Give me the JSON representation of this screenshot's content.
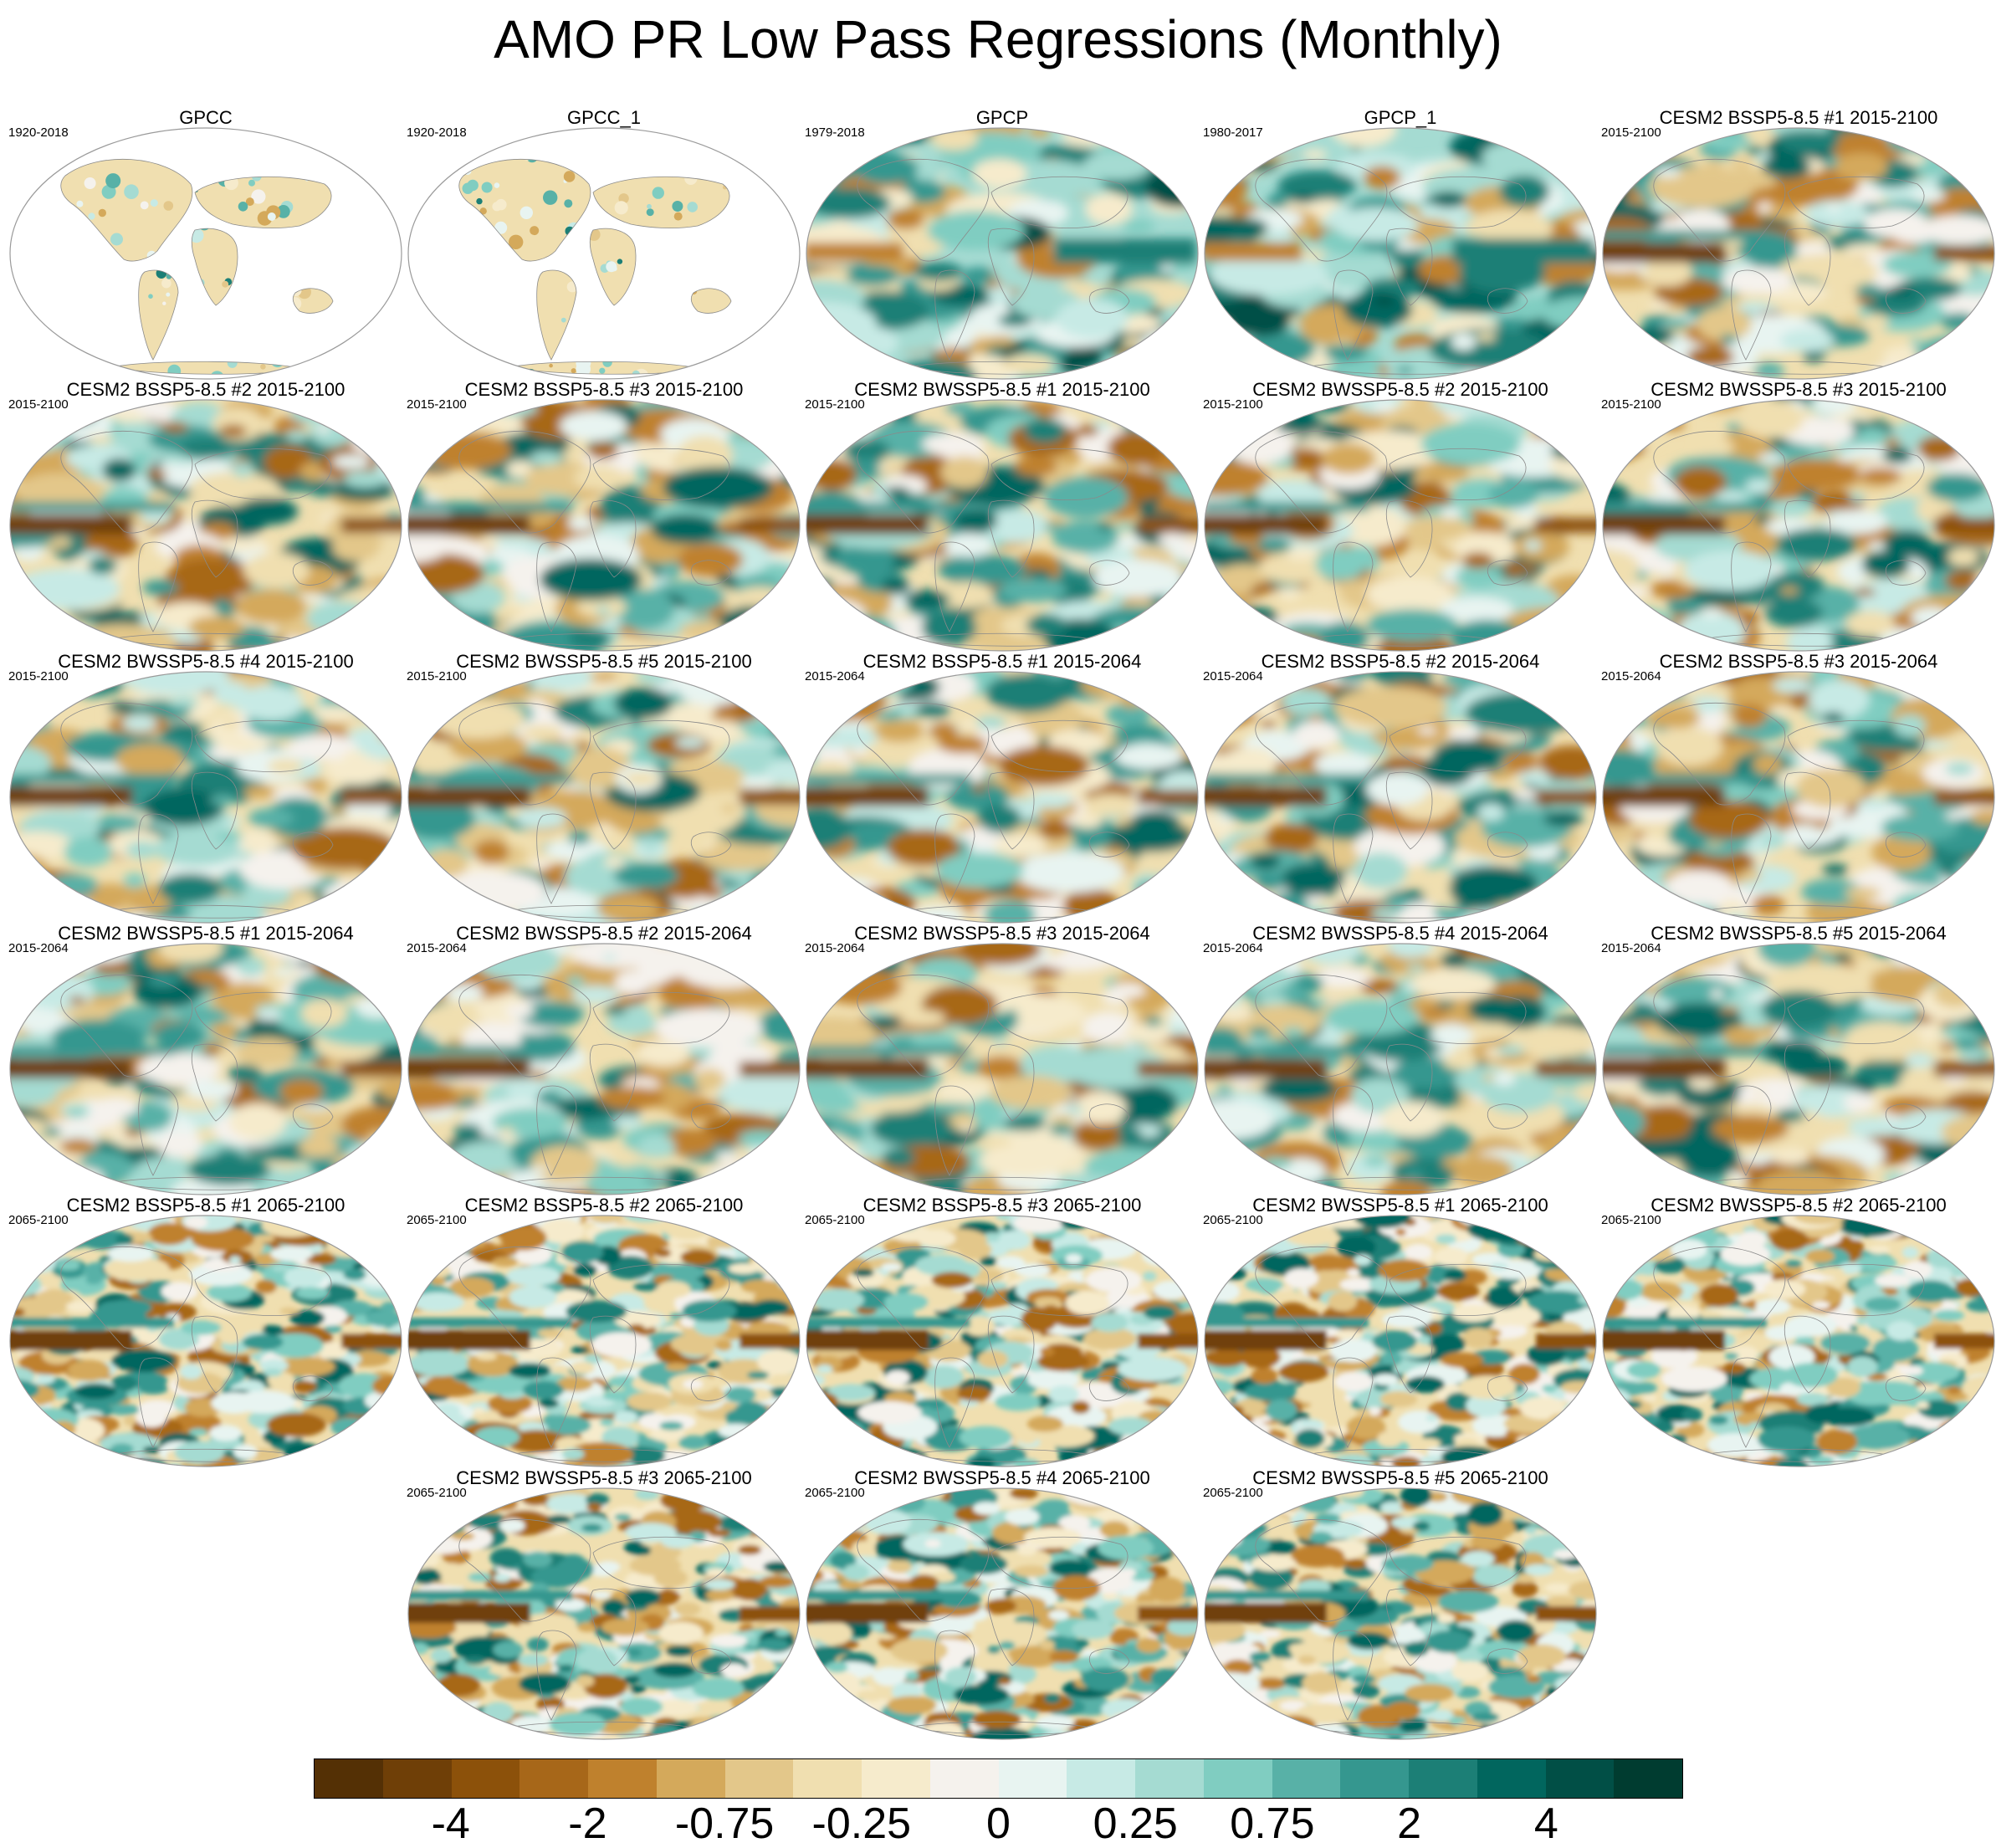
{
  "title": "AMO PR Low Pass Regressions (Monthly)",
  "panels": [
    {
      "title": "GPCC",
      "period": "1920-2018",
      "kind": "land"
    },
    {
      "title": "GPCC_1",
      "period": "1920-2018",
      "kind": "land"
    },
    {
      "title": "GPCP",
      "period": "1979-2018",
      "kind": "obs"
    },
    {
      "title": "GPCP_1",
      "period": "1980-2017",
      "kind": "obs"
    },
    {
      "title": "CESM2 BSSP5-8.5 #1 2015-2100",
      "period": "2015-2100",
      "kind": "model"
    },
    {
      "title": "CESM2 BSSP5-8.5 #2 2015-2100",
      "period": "2015-2100",
      "kind": "model"
    },
    {
      "title": "CESM2 BSSP5-8.5 #3 2015-2100",
      "period": "2015-2100",
      "kind": "model"
    },
    {
      "title": "CESM2 BWSSP5-8.5 #1 2015-2100",
      "period": "2015-2100",
      "kind": "model"
    },
    {
      "title": "CESM2 BWSSP5-8.5 #2 2015-2100",
      "period": "2015-2100",
      "kind": "model"
    },
    {
      "title": "CESM2 BWSSP5-8.5 #3 2015-2100",
      "period": "2015-2100",
      "kind": "model"
    },
    {
      "title": "CESM2 BWSSP5-8.5 #4 2015-2100",
      "period": "2015-2100",
      "kind": "model"
    },
    {
      "title": "CESM2 BWSSP5-8.5 #5 2015-2100",
      "period": "2015-2100",
      "kind": "model"
    },
    {
      "title": "CESM2 BSSP5-8.5 #1 2015-2064",
      "period": "2015-2064",
      "kind": "model"
    },
    {
      "title": "CESM2 BSSP5-8.5 #2 2015-2064",
      "period": "2015-2064",
      "kind": "model"
    },
    {
      "title": "CESM2 BSSP5-8.5 #3 2015-2064",
      "period": "2015-2064",
      "kind": "model"
    },
    {
      "title": "CESM2 BWSSP5-8.5 #1 2015-2064",
      "period": "2015-2064",
      "kind": "model"
    },
    {
      "title": "CESM2 BWSSP5-8.5 #2 2015-2064",
      "period": "2015-2064",
      "kind": "model"
    },
    {
      "title": "CESM2 BWSSP5-8.5 #3 2015-2064",
      "period": "2015-2064",
      "kind": "model"
    },
    {
      "title": "CESM2 BWSSP5-8.5 #4 2015-2064",
      "period": "2015-2064",
      "kind": "model"
    },
    {
      "title": "CESM2 BWSSP5-8.5 #5 2015-2064",
      "period": "2015-2064",
      "kind": "model"
    },
    {
      "title": "CESM2 BSSP5-8.5 #1 2065-2100",
      "period": "2065-2100",
      "kind": "noisy"
    },
    {
      "title": "CESM2 BSSP5-8.5 #2 2065-2100",
      "period": "2065-2100",
      "kind": "noisy"
    },
    {
      "title": "CESM2 BSSP5-8.5 #3 2065-2100",
      "period": "2065-2100",
      "kind": "noisy"
    },
    {
      "title": "CESM2 BWSSP5-8.5 #1 2065-2100",
      "period": "2065-2100",
      "kind": "noisy"
    },
    {
      "title": "CESM2 BWSSP5-8.5 #2 2065-2100",
      "period": "2065-2100",
      "kind": "noisy"
    },
    {
      "title": "CESM2 BWSSP5-8.5 #3 2065-2100",
      "period": "2065-2100",
      "kind": "noisy"
    },
    {
      "title": "CESM2 BWSSP5-8.5 #4 2065-2100",
      "period": "2065-2100",
      "kind": "noisy"
    },
    {
      "title": "CESM2 BWSSP5-8.5 #5 2065-2100",
      "period": "2065-2100",
      "kind": "noisy"
    }
  ],
  "colorbar": {
    "colors": [
      "#543005",
      "#6f3f07",
      "#8c510a",
      "#a76719",
      "#bf812d",
      "#d4a95b",
      "#e3c78a",
      "#f0dfb0",
      "#f6ebcc",
      "#f5f2ed",
      "#e8f4f1",
      "#c7eae5",
      "#a5dbd2",
      "#80cdc1",
      "#58b1a7",
      "#35978f",
      "#1c7f76",
      "#01665e",
      "#014f46",
      "#003c30"
    ],
    "labels": [
      "-4",
      "-2",
      "-0.75",
      "-0.25",
      "0",
      "0.25",
      "0.75",
      "2",
      "4"
    ]
  }
}
